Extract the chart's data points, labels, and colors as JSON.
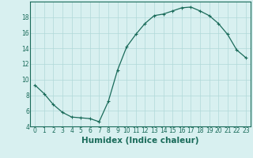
{
  "x": [
    0,
    1,
    2,
    3,
    4,
    5,
    6,
    7,
    8,
    9,
    10,
    11,
    12,
    13,
    14,
    15,
    16,
    17,
    18,
    19,
    20,
    21,
    22,
    23
  ],
  "y": [
    9.3,
    8.2,
    6.8,
    5.8,
    5.2,
    5.1,
    5.0,
    4.6,
    7.2,
    11.2,
    14.2,
    15.8,
    17.2,
    18.2,
    18.4,
    18.8,
    19.2,
    19.3,
    18.8,
    18.2,
    17.2,
    15.8,
    13.8,
    12.8
  ],
  "line_color": "#1a6b5a",
  "marker": "+",
  "marker_size": 3,
  "xlabel": "Humidex (Indice chaleur)",
  "xlim": [
    -0.5,
    23.5
  ],
  "ylim": [
    4,
    20
  ],
  "yticks": [
    4,
    6,
    8,
    10,
    12,
    14,
    16,
    18
  ],
  "xticks": [
    0,
    1,
    2,
    3,
    4,
    5,
    6,
    7,
    8,
    9,
    10,
    11,
    12,
    13,
    14,
    15,
    16,
    17,
    18,
    19,
    20,
    21,
    22,
    23
  ],
  "background_color": "#d8f0f0",
  "grid_color": "#b0d8d8",
  "tick_fontsize": 5.5,
  "xlabel_fontsize": 7.5
}
